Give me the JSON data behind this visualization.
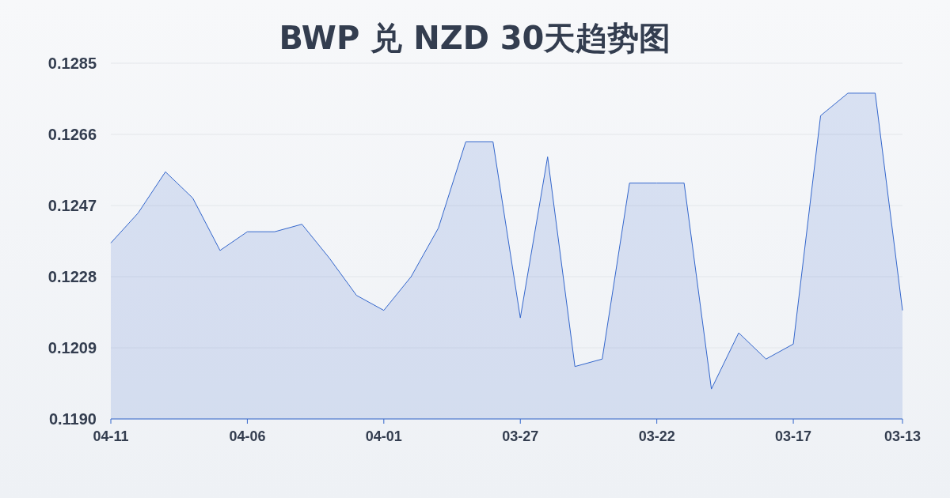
{
  "chart_data": {
    "type": "area",
    "title": "BWP 兑 NZD 30天趋势图",
    "categories": [
      "04-11",
      null,
      null,
      null,
      null,
      "04-06",
      null,
      null,
      null,
      null,
      "04-01",
      null,
      null,
      null,
      null,
      "03-27",
      null,
      null,
      null,
      null,
      "03-22",
      null,
      null,
      null,
      null,
      "03-17",
      null,
      null,
      null,
      "03-13"
    ],
    "values": [
      0.1237,
      0.1245,
      0.1256,
      0.1249,
      0.1235,
      0.124,
      0.124,
      0.1242,
      0.1233,
      0.1223,
      0.1219,
      0.1228,
      0.1241,
      0.1264,
      0.1264,
      0.1217,
      0.126,
      0.1204,
      0.1206,
      0.1253,
      0.1253,
      0.1253,
      0.1198,
      0.1213,
      0.1206,
      0.121,
      0.1271,
      0.1277,
      0.1277,
      0.1219
    ],
    "color": "#3366cc",
    "ylim": [
      0.119,
      0.1285
    ],
    "yticks": [
      {
        "value": 0.119,
        "label": "0.1190"
      },
      {
        "value": 0.1209,
        "label": "0.1209"
      },
      {
        "value": 0.1228,
        "label": "0.1228"
      },
      {
        "value": 0.1247,
        "label": "0.1247"
      },
      {
        "value": 0.1266,
        "label": "0.1266"
      },
      {
        "value": 0.1285,
        "label": "0.1285"
      }
    ],
    "grid": "y"
  }
}
